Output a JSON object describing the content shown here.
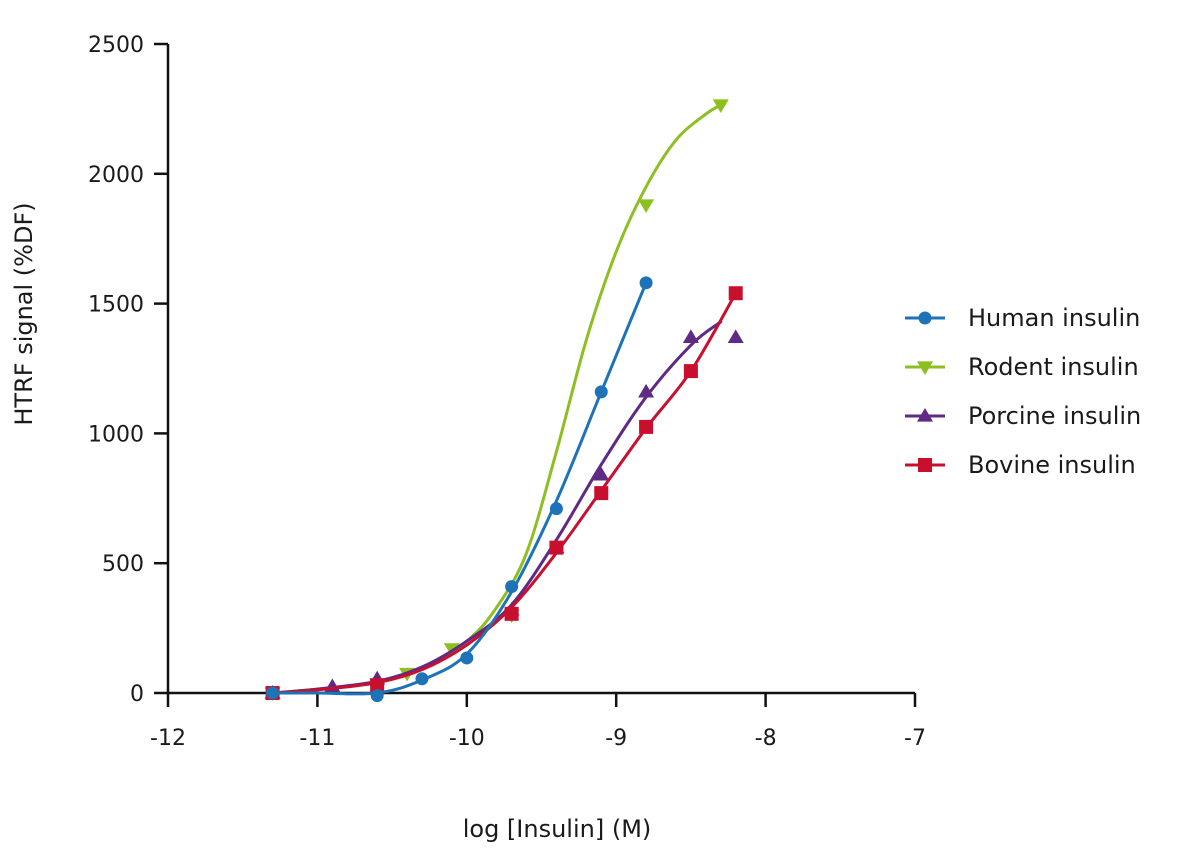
{
  "chart_data": {
    "type": "line",
    "xlabel": "log [Insulin] (M)",
    "ylabel": "HTRF signal (%DF)",
    "xlim": [
      -12,
      -7
    ],
    "ylim": [
      0,
      2500
    ],
    "x_ticks": [
      -12,
      -11,
      -10,
      -9,
      -8,
      -7
    ],
    "x_tick_labels": [
      "-12",
      "-11",
      "-10",
      "-9",
      "-8",
      "-7"
    ],
    "y_ticks": [
      0,
      500,
      1000,
      1500,
      2000,
      2500
    ],
    "y_tick_labels": [
      "0",
      "500",
      "1000",
      "1500",
      "2000",
      "2500"
    ],
    "grid": false,
    "legend_position": "right",
    "series": [
      {
        "name": "Human insulin",
        "color": "#1e73b8",
        "marker": "circle",
        "points": [
          [
            -11.3,
            0
          ],
          [
            -10.6,
            -10
          ],
          [
            -10.3,
            55
          ],
          [
            -10.0,
            135
          ],
          [
            -9.7,
            410
          ],
          [
            -9.4,
            710
          ],
          [
            -9.1,
            1160
          ],
          [
            -8.8,
            1580
          ]
        ],
        "curve": [
          [
            -11.3,
            0
          ],
          [
            -11.0,
            0
          ],
          [
            -10.6,
            0
          ],
          [
            -10.3,
            50
          ],
          [
            -10.0,
            150
          ],
          [
            -9.7,
            390
          ],
          [
            -9.4,
            740
          ],
          [
            -9.1,
            1160
          ],
          [
            -8.8,
            1580
          ]
        ]
      },
      {
        "name": "Rodent insulin",
        "color": "#8cbf1f",
        "marker": "triangle-down",
        "points": [
          [
            -11.3,
            0
          ],
          [
            -10.6,
            35
          ],
          [
            -10.4,
            75
          ],
          [
            -10.1,
            170
          ],
          [
            -9.7,
            300
          ],
          [
            -8.8,
            1880
          ],
          [
            -8.3,
            2265
          ]
        ],
        "curve": [
          [
            -11.3,
            0
          ],
          [
            -11.0,
            15
          ],
          [
            -10.6,
            40
          ],
          [
            -10.3,
            95
          ],
          [
            -10.0,
            200
          ],
          [
            -9.8,
            330
          ],
          [
            -9.6,
            540
          ],
          [
            -9.4,
            930
          ],
          [
            -9.2,
            1360
          ],
          [
            -9.0,
            1700
          ],
          [
            -8.8,
            1950
          ],
          [
            -8.6,
            2130
          ],
          [
            -8.4,
            2230
          ],
          [
            -8.3,
            2265
          ]
        ]
      },
      {
        "name": "Porcine insulin",
        "color": "#5e2a84",
        "marker": "triangle-up",
        "points": [
          [
            -11.3,
            0
          ],
          [
            -10.9,
            25
          ],
          [
            -10.6,
            55
          ],
          [
            -9.7,
            320
          ],
          [
            -9.4,
            560
          ],
          [
            -9.1,
            840
          ],
          [
            -8.8,
            1160
          ],
          [
            -8.5,
            1370
          ],
          [
            -8.2,
            1370
          ]
        ],
        "curve": [
          [
            -11.3,
            0
          ],
          [
            -11.0,
            15
          ],
          [
            -10.6,
            45
          ],
          [
            -10.3,
            100
          ],
          [
            -10.0,
            200
          ],
          [
            -9.7,
            340
          ],
          [
            -9.4,
            590
          ],
          [
            -9.1,
            880
          ],
          [
            -8.8,
            1140
          ],
          [
            -8.5,
            1340
          ],
          [
            -8.3,
            1430
          ]
        ]
      },
      {
        "name": "Bovine insulin",
        "color": "#c8102e",
        "marker": "square",
        "points": [
          [
            -11.3,
            0
          ],
          [
            -10.6,
            30
          ],
          [
            -9.7,
            305
          ],
          [
            -9.4,
            560
          ],
          [
            -9.1,
            770
          ],
          [
            -8.8,
            1025
          ],
          [
            -8.5,
            1240
          ],
          [
            -8.2,
            1540
          ]
        ],
        "curve": [
          [
            -11.3,
            0
          ],
          [
            -11.0,
            12
          ],
          [
            -10.6,
            40
          ],
          [
            -10.3,
            90
          ],
          [
            -10.0,
            185
          ],
          [
            -9.7,
            330
          ],
          [
            -9.4,
            540
          ],
          [
            -9.1,
            780
          ],
          [
            -8.8,
            1020
          ],
          [
            -8.5,
            1240
          ],
          [
            -8.2,
            1540
          ]
        ]
      }
    ]
  }
}
